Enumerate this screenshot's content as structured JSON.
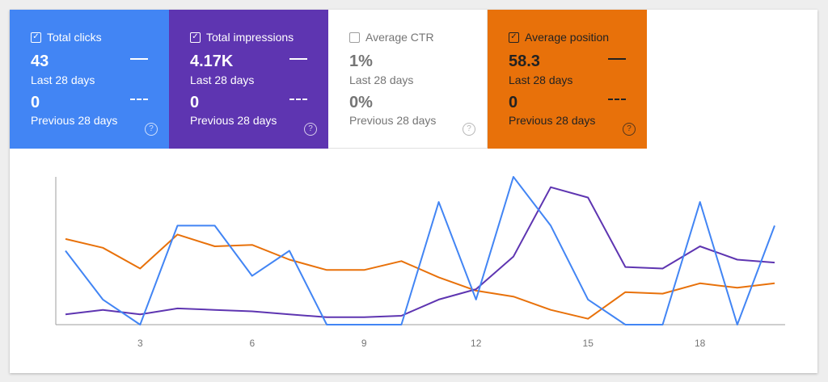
{
  "metrics": [
    {
      "key": "clicks",
      "label": "Total clicks",
      "checked": true,
      "value": "43",
      "period": "Last 28 days",
      "prev_value": "0",
      "prev_period": "Previous 28 days",
      "color": "#4285f4"
    },
    {
      "key": "impressions",
      "label": "Total impressions",
      "checked": true,
      "value": "4.17K",
      "period": "Last 28 days",
      "prev_value": "0",
      "prev_period": "Previous 28 days",
      "color": "#5e35b1"
    },
    {
      "key": "ctr",
      "label": "Average CTR",
      "checked": false,
      "value": "1%",
      "period": "Last 28 days",
      "prev_value": "0%",
      "prev_period": "Previous 28 days",
      "color": "#ffffff"
    },
    {
      "key": "position",
      "label": "Average position",
      "checked": true,
      "value": "58.3",
      "period": "Last 28 days",
      "prev_value": "0",
      "prev_period": "Previous 28 days",
      "color": "#e8710a"
    }
  ],
  "icons": {
    "checkbox": "check-icon",
    "help": "help-circle-icon"
  },
  "chart_data": {
    "type": "line",
    "x": [
      1,
      2,
      3,
      4,
      5,
      6,
      7,
      8,
      9,
      10,
      11,
      12,
      13,
      14,
      15,
      16,
      17,
      18,
      19,
      20
    ],
    "xticks": [
      "3",
      "6",
      "9",
      "12",
      "15",
      "18"
    ],
    "xtick_values": [
      3,
      6,
      9,
      12,
      15,
      18
    ],
    "grid": false,
    "series": [
      {
        "name": "",
        "color": "#4285f4",
        "values": [
          0.5,
          0.17,
          0.0,
          0.67,
          0.67,
          0.33,
          0.5,
          0.0,
          0.0,
          0.0,
          0.83,
          0.17,
          1.0,
          0.67,
          0.17,
          0.0,
          0.0,
          0.83,
          0.0,
          0.67
        ]
      },
      {
        "name": "",
        "color": "#5e35b1",
        "values": [
          0.07,
          0.1,
          0.07,
          0.11,
          0.1,
          0.09,
          0.07,
          0.05,
          0.05,
          0.06,
          0.17,
          0.24,
          0.46,
          0.93,
          0.86,
          0.39,
          0.38,
          0.53,
          0.44,
          0.42
        ]
      },
      {
        "name": "",
        "color": "#e8710a",
        "values": [
          0.58,
          0.52,
          0.38,
          0.61,
          0.53,
          0.54,
          0.44,
          0.37,
          0.37,
          0.43,
          0.32,
          0.23,
          0.19,
          0.1,
          0.04,
          0.22,
          0.21,
          0.28,
          0.25,
          0.28
        ]
      }
    ],
    "ylim": [
      0,
      1
    ]
  }
}
